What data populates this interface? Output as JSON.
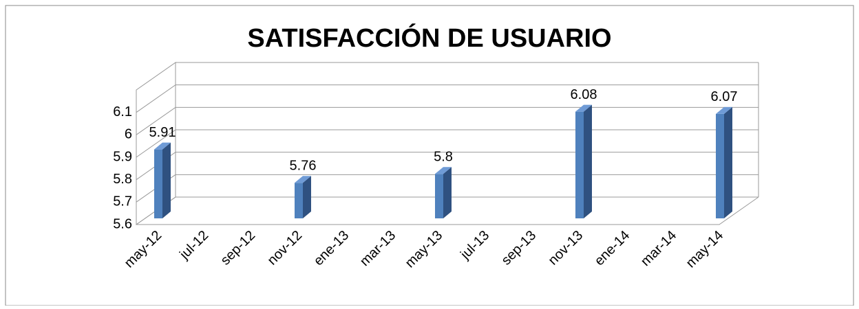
{
  "chart_data": {
    "type": "bar3d",
    "title": "SATISFACCIÓN DE USUARIO",
    "categories": [
      "may-12",
      "jul-12",
      "sep-12",
      "nov-12",
      "ene-13",
      "mar-13",
      "may-13",
      "jul-13",
      "sep-13",
      "nov-13",
      "ene-14",
      "mar-14",
      "may-14"
    ],
    "values": [
      5.91,
      null,
      null,
      5.76,
      null,
      null,
      5.8,
      null,
      null,
      6.08,
      null,
      null,
      6.07
    ],
    "color": "#4f81bd",
    "ylim": [
      5.6,
      6.2
    ],
    "yticks": [
      5.6,
      5.7,
      5.8,
      5.9,
      6,
      6.1
    ],
    "grid": true
  }
}
